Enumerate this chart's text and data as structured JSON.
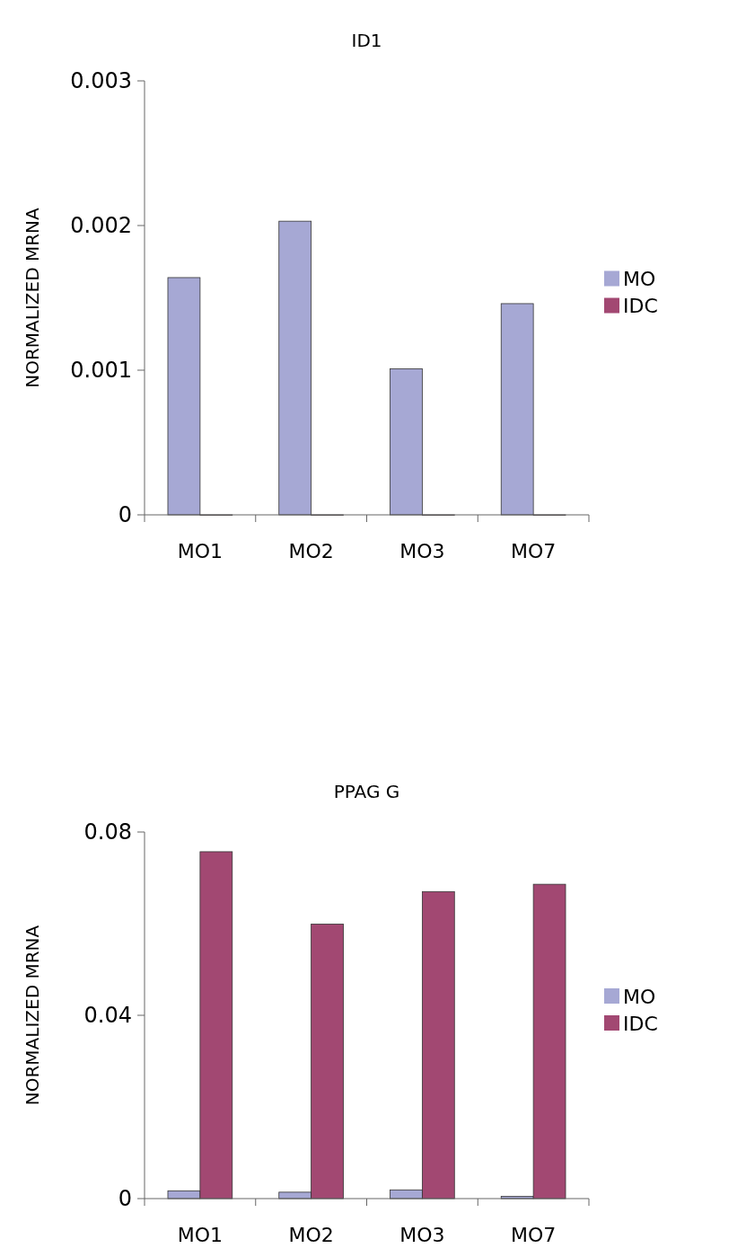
{
  "chart_data": [
    {
      "type": "bar",
      "title": "ID1",
      "ylabel": "NORMALIZED MRNA",
      "categories": [
        "MO1",
        "MO2",
        "MO3",
        "MO7"
      ],
      "series": [
        {
          "name": "MO",
          "color": "#a6a8d4",
          "values": [
            0.00164,
            0.00203,
            0.00101,
            0.00146
          ]
        },
        {
          "name": "IDC",
          "color": "#a24872",
          "values": [
            0,
            0,
            0,
            0
          ]
        }
      ],
      "ylim": [
        0,
        0.003
      ],
      "yticks": [
        0,
        0.001,
        0.002,
        0.003
      ],
      "grid": false,
      "legend": "right"
    },
    {
      "type": "bar",
      "title": "PPAG G",
      "ylabel": "NORMALIZED MRNA",
      "categories": [
        "MO1",
        "MO2",
        "MO3",
        "MO7"
      ],
      "series": [
        {
          "name": "MO",
          "color": "#a6a8d4",
          "values": [
            0.0017,
            0.0014,
            0.0019,
            0.0005
          ]
        },
        {
          "name": "IDC",
          "color": "#a24872",
          "values": [
            0.0757,
            0.0599,
            0.067,
            0.0686
          ]
        }
      ],
      "ylim": [
        0,
        0.08
      ],
      "yticks": [
        0,
        0.04,
        0.08
      ],
      "grid": false,
      "legend": "right"
    }
  ]
}
